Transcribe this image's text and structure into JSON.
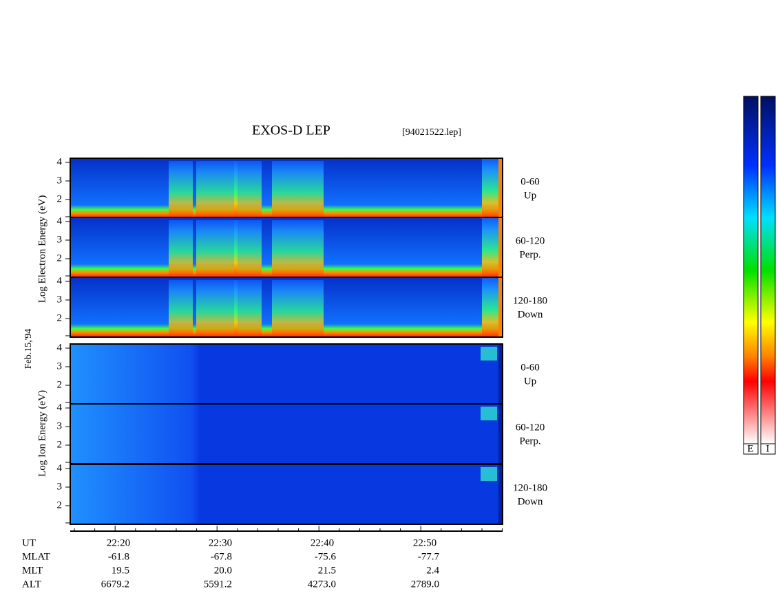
{
  "title": "EXOS-D LEP",
  "file": "[94021522.lep]",
  "date": "Feb.15,'94",
  "electron_axis_label": "Log Electron Energy (eV)",
  "ion_axis_label": "Log Ion Energy (eV)",
  "yticks": [
    "2",
    "3",
    "4"
  ],
  "panels": [
    {
      "angle": "0-60",
      "direction": "Up"
    },
    {
      "angle": "60-120",
      "direction": "Perp."
    },
    {
      "angle": "120-180",
      "direction": "Down"
    },
    {
      "angle": "0-60",
      "direction": "Up"
    },
    {
      "angle": "60-120",
      "direction": "Perp."
    },
    {
      "angle": "120-180",
      "direction": "Down"
    }
  ],
  "footer": {
    "rows": [
      {
        "label": "UT",
        "values": [
          "22:20",
          "22:30",
          "22:40",
          "22:50"
        ]
      },
      {
        "label": "MLAT",
        "values": [
          "-61.8",
          "-67.8",
          "-75.6",
          "-77.7"
        ]
      },
      {
        "label": "MLT",
        "values": [
          "19.5",
          "20.0",
          "21.5",
          "2.4"
        ]
      },
      {
        "label": "ALT",
        "values": [
          "6679.2",
          "5591.2",
          "4273.0",
          "2789.0"
        ]
      }
    ]
  },
  "colorbar_labels": [
    "E",
    "I"
  ]
}
